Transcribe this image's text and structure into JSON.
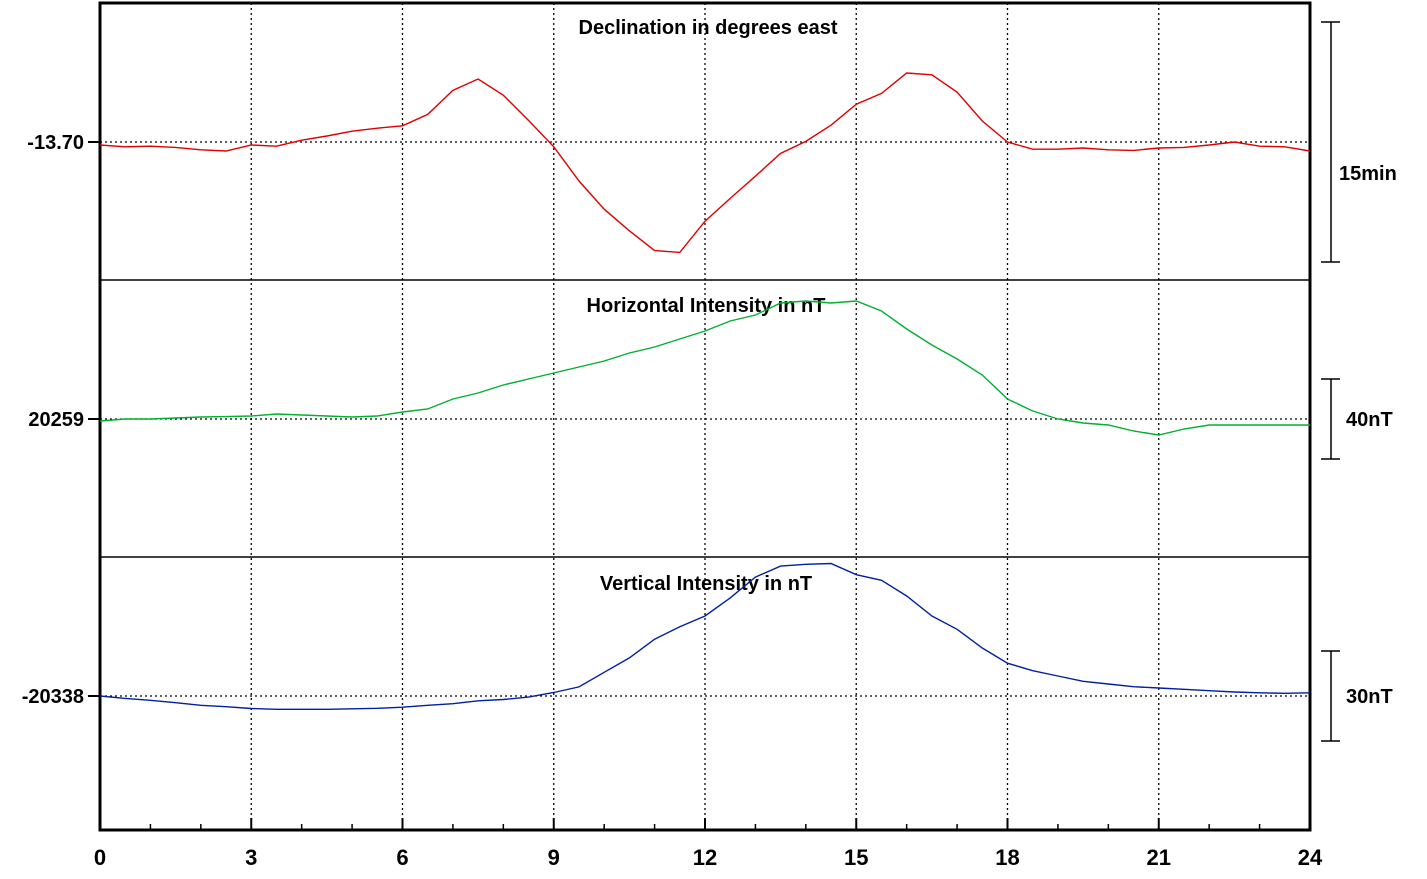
{
  "chart_data": {
    "type": "line",
    "x_axis": {
      "min": 0,
      "max": 24,
      "major_ticks": [
        0,
        3,
        6,
        9,
        12,
        15,
        18,
        21,
        24
      ],
      "tick_labels": [
        "0",
        "3",
        "6",
        "9",
        "12",
        "15",
        "18",
        "21",
        "24"
      ],
      "minor_step": 1
    },
    "grid": true,
    "panels": [
      {
        "title": "Declination in degrees east",
        "reference_label": "-13.70",
        "scale_label": "15min",
        "color": "#e00000",
        "x": [
          0,
          0.5,
          1,
          1.5,
          2,
          2.5,
          3,
          3.5,
          4,
          4.5,
          5,
          5.5,
          6,
          6.5,
          7,
          7.5,
          8,
          8.5,
          9,
          9.5,
          10,
          10.5,
          11,
          11.5,
          12,
          12.5,
          13,
          13.5,
          14,
          14.5,
          15,
          15.5,
          16,
          16.5,
          17,
          17.5,
          18,
          18.5,
          19,
          19.5,
          20,
          20.5,
          21,
          21.5,
          22,
          22.5,
          23,
          23.5,
          24
        ],
        "y": [
          -0.5,
          -0.8,
          -0.7,
          -0.9,
          -1.3,
          -1.5,
          -0.5,
          -0.7,
          0.3,
          1.0,
          1.8,
          2.3,
          2.7,
          4.6,
          8.6,
          10.5,
          7.8,
          3.6,
          -0.8,
          -6.5,
          -11.2,
          -14.8,
          -18.1,
          -18.4,
          -13.2,
          -9.4,
          -5.7,
          -1.9,
          0.1,
          2.8,
          6.3,
          8.1,
          11.5,
          11.2,
          8.3,
          3.5,
          0.0,
          -1.2,
          -1.2,
          -1.0,
          -1.3,
          -1.4,
          -1.0,
          -0.9,
          -0.5,
          0.0,
          -0.7,
          -0.8,
          -1.5
        ]
      },
      {
        "title": "Horizontal Intensity in nT",
        "reference_label": "20259",
        "scale_label": "40nT",
        "color": "#00b030",
        "x": [
          0,
          0.5,
          1,
          1.5,
          2,
          2.5,
          3,
          3.5,
          4,
          4.5,
          5,
          5.5,
          6,
          6.5,
          7,
          7.5,
          8,
          8.5,
          9,
          9.5,
          10,
          10.5,
          11,
          11.5,
          12,
          12.5,
          13,
          13.5,
          14,
          14.5,
          15,
          15.5,
          16,
          16.5,
          17,
          17.5,
          18,
          18.5,
          19,
          19.5,
          20,
          20.5,
          21,
          21.5,
          22,
          22.5,
          23,
          23.5,
          24
        ],
        "y": [
          -1,
          0,
          0,
          0.5,
          1,
          1.2,
          1.5,
          2.5,
          2,
          1.5,
          1,
          1.5,
          3.5,
          5,
          10,
          13,
          17,
          20,
          23,
          26,
          29,
          33,
          36,
          40,
          44,
          49,
          52,
          58,
          59,
          58,
          59,
          54,
          45,
          37,
          30,
          22,
          10,
          4,
          0,
          -2,
          -3,
          -6,
          -8,
          -5,
          -3,
          -3,
          -3,
          -3,
          -3
        ]
      },
      {
        "title": "Vertical Intensity in nT",
        "reference_label": "-20338",
        "scale_label": "30nT",
        "color": "#0020a0",
        "x": [
          0,
          0.5,
          1,
          1.5,
          2,
          2.5,
          3,
          3.5,
          4,
          4.5,
          5,
          5.5,
          6,
          6.5,
          7,
          7.5,
          8,
          8.5,
          9,
          9.5,
          10,
          10.5,
          11,
          11.5,
          12,
          12.5,
          13,
          13.5,
          14,
          14.5,
          15,
          15.5,
          16,
          16.5,
          17,
          17.5,
          18,
          18.5,
          19,
          19.5,
          20,
          20.5,
          21,
          21.5,
          22,
          22.5,
          23,
          23.5,
          24
        ],
        "y": [
          0,
          -0.9,
          -1.6,
          -2.5,
          -3.5,
          -4.0,
          -4.7,
          -5.0,
          -5.0,
          -5.0,
          -4.8,
          -4.6,
          -4.2,
          -3.5,
          -2.9,
          -1.8,
          -1.3,
          -0.4,
          1.3,
          3.4,
          8.9,
          14.3,
          21.3,
          26.0,
          30.0,
          36.8,
          44.6,
          48.7,
          49.4,
          49.7,
          45.5,
          43.4,
          37.5,
          30.0,
          25.0,
          18.0,
          12.3,
          9.5,
          7.5,
          5.5,
          4.5,
          3.5,
          3.0,
          2.5,
          2.0,
          1.5,
          1.2,
          1.0,
          1.2
        ]
      }
    ]
  }
}
